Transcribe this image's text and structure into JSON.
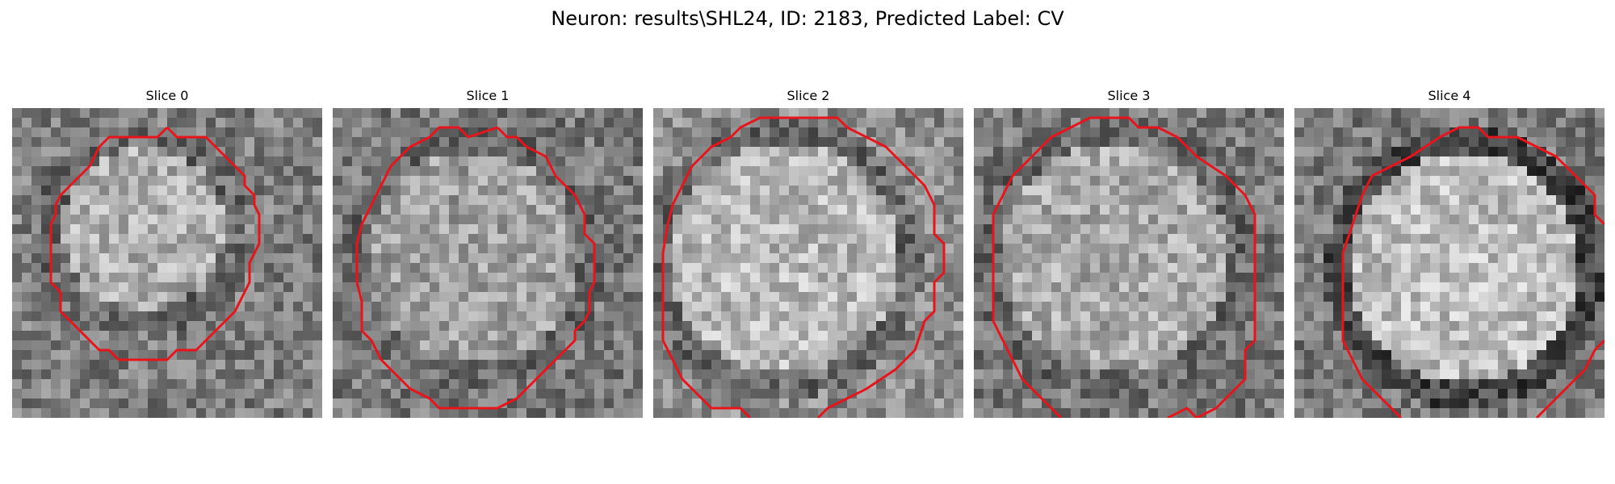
{
  "figure": {
    "title": "Neuron: results\\SHL24, ID: 2183, Predicted Label: CV",
    "contour_color": "#e8141c"
  },
  "panels": [
    {
      "title": "Slice 0"
    },
    {
      "title": "Slice 1"
    },
    {
      "title": "Slice 2"
    },
    {
      "title": "Slice 3"
    },
    {
      "title": "Slice 4"
    }
  ]
}
